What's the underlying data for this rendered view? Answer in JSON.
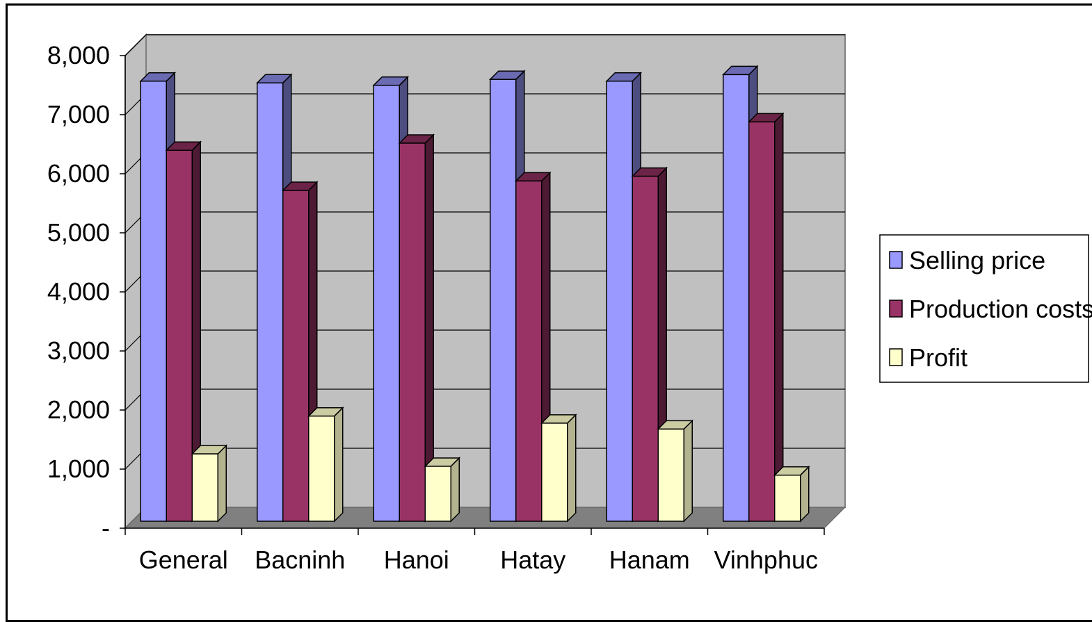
{
  "chart_data": {
    "type": "bar",
    "categories": [
      "General",
      "Bacninh",
      "Hanoi",
      "Hatay",
      "Hanam",
      "Vinhphuc"
    ],
    "series": [
      {
        "name": "Selling price",
        "values": [
          7450,
          7420,
          7380,
          7480,
          7450,
          7560
        ],
        "color": "#9999ff",
        "side_color": "#4d4d80",
        "top_color": "#6b6bb3"
      },
      {
        "name": "Production costs",
        "values": [
          6280,
          5600,
          6400,
          5760,
          5840,
          6760
        ],
        "color": "#993366",
        "side_color": "#4d1a33",
        "top_color": "#6b2447"
      },
      {
        "name": "Profit",
        "values": [
          1140,
          1780,
          930,
          1660,
          1560,
          780
        ],
        "color": "#ffffcc",
        "side_color": "#b3b38f",
        "top_color": "#cccca3"
      }
    ],
    "y_ticks": [
      "-",
      "1,000",
      "2,000",
      "3,000",
      "4,000",
      "5,000",
      "6,000",
      "7,000",
      "8,000"
    ],
    "ylim": [
      0,
      8000
    ],
    "title": "",
    "xlabel": "",
    "ylabel": "",
    "legend_position": "right",
    "grid": true,
    "wall_color": "#c0c0c0",
    "floor_color": "#808080"
  }
}
